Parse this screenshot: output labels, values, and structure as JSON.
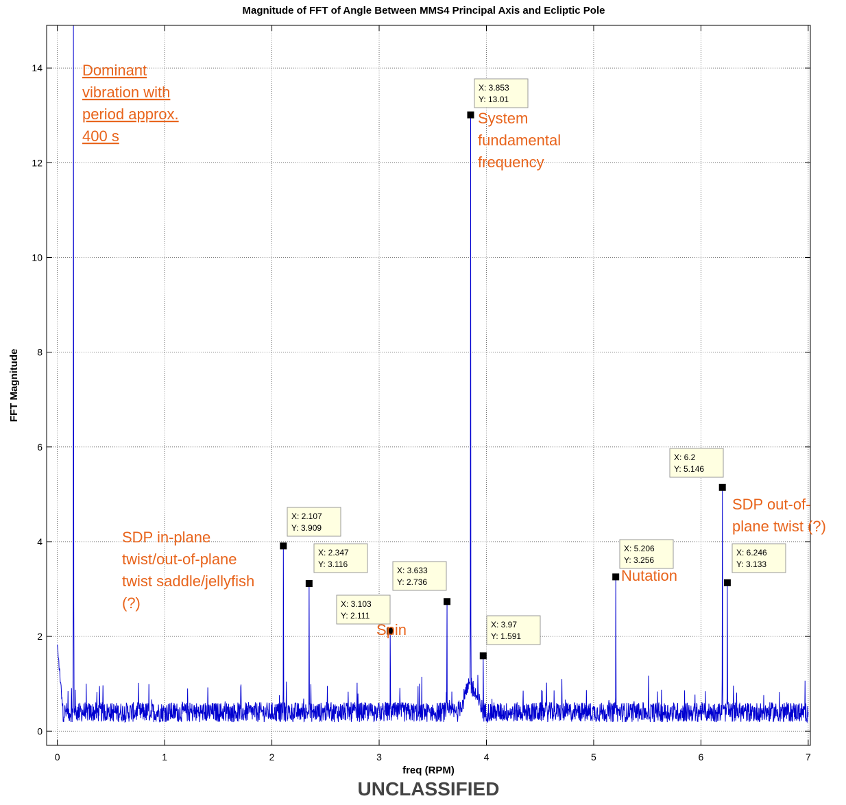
{
  "chart_data": {
    "type": "line",
    "title": "Magnitude of FFT of Angle Between MMS4 Principal Axis and Ecliptic Pole",
    "xlabel": "freq (RPM)",
    "ylabel": "FFT Magnitude",
    "xlim": [
      -0.1,
      7.02
    ],
    "ylim": [
      -0.3,
      14.9
    ],
    "xticks": [
      0,
      1,
      2,
      3,
      4,
      5,
      6,
      7
    ],
    "yticks": [
      0,
      2,
      4,
      6,
      8,
      10,
      12,
      14
    ],
    "grid": true,
    "series_color": "#0000d0",
    "annotation_color": "#e8641c",
    "noise_baseline": 0.4,
    "peaks": [
      {
        "x": 0.15,
        "y": 14.9
      },
      {
        "x": 2.107,
        "y": 3.909
      },
      {
        "x": 2.347,
        "y": 3.116
      },
      {
        "x": 3.103,
        "y": 2.111
      },
      {
        "x": 3.633,
        "y": 2.736
      },
      {
        "x": 3.853,
        "y": 13.01
      },
      {
        "x": 3.97,
        "y": 1.591
      },
      {
        "x": 5.206,
        "y": 3.256
      },
      {
        "x": 6.2,
        "y": 5.146
      },
      {
        "x": 6.246,
        "y": 3.133
      }
    ],
    "datatips": [
      {
        "x_text": "X: 2.107",
        "y_text": "Y: 3.909",
        "x": 2.107,
        "y": 3.909
      },
      {
        "x_text": "X: 2.347",
        "y_text": "Y: 3.116",
        "x": 2.347,
        "y": 3.116
      },
      {
        "x_text": "X: 3.103",
        "y_text": "Y: 2.111",
        "x": 3.103,
        "y": 2.111
      },
      {
        "x_text": "X: 3.633",
        "y_text": "Y: 2.736",
        "x": 3.633,
        "y": 2.736
      },
      {
        "x_text": "X: 3.853",
        "y_text": "Y: 13.01",
        "x": 3.853,
        "y": 13.01
      },
      {
        "x_text": "X: 3.97",
        "y_text": "Y: 1.591",
        "x": 3.97,
        "y": 1.591
      },
      {
        "x_text": "X: 5.206",
        "y_text": "Y: 3.256",
        "x": 5.206,
        "y": 3.256
      },
      {
        "x_text": "X: 6.2",
        "y_text": "Y: 5.146",
        "x": 6.2,
        "y": 5.146
      },
      {
        "x_text": "X: 6.246",
        "y_text": "Y: 3.133",
        "x": 6.246,
        "y": 3.133
      }
    ],
    "annotations": [
      {
        "lines": [
          "Dominant",
          "vibration with",
          "period approx.",
          "400 s"
        ],
        "underline": true
      },
      {
        "lines": [
          "System",
          "fundamental",
          "frequency"
        ],
        "underline": false
      },
      {
        "lines": [
          "SDP in-plane",
          "twist/out-of-plane",
          "twist saddle/jellyfish",
          "(?)"
        ],
        "underline": false
      },
      {
        "lines": [
          "Spin"
        ],
        "underline": false
      },
      {
        "lines": [
          "Nutation"
        ],
        "underline": false
      },
      {
        "lines": [
          "SDP out-of-",
          "plane twist (?)"
        ],
        "underline": false
      }
    ]
  },
  "footer": "UNCLASSIFIED"
}
